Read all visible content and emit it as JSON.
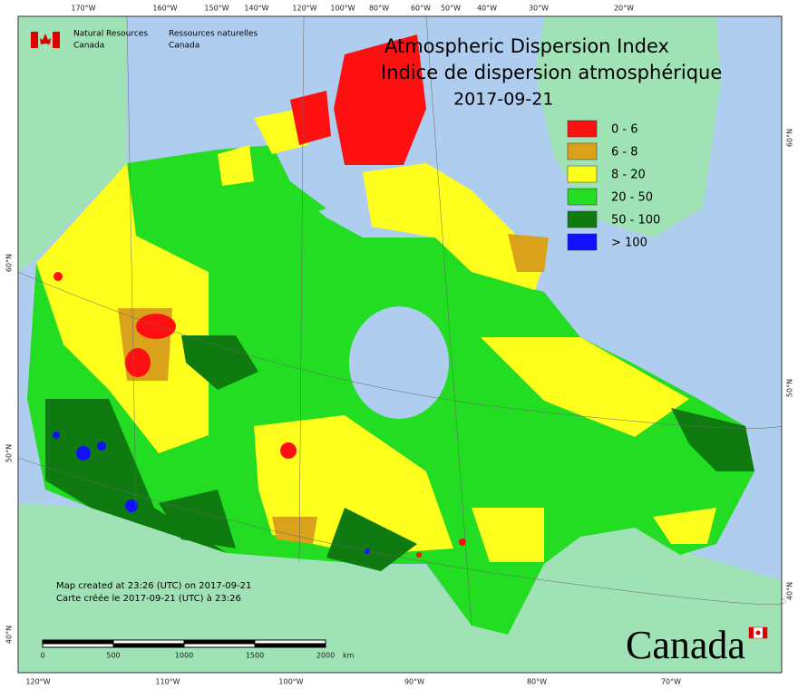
{
  "header": {
    "org_en": [
      "Natural Resources",
      "Canada"
    ],
    "org_fr": [
      "Ressources naturelles",
      "Canada"
    ]
  },
  "title": {
    "line1": "Atmospheric Dispersion Index",
    "line2": "Indice de dispersion atmosphérique",
    "date": "2017-09-21"
  },
  "legend": [
    {
      "label": "0 - 6",
      "color": "#ff1010"
    },
    {
      "label": "6 - 8",
      "color": "#d9a21a"
    },
    {
      "label": "8 - 20",
      "color": "#ffff1e"
    },
    {
      "label": "20 - 50",
      "color": "#22dd22"
    },
    {
      "label": "50 - 100",
      "color": "#0e7a10"
    },
    {
      "label": "> 100",
      "color": "#1010ff"
    }
  ],
  "top_longitudes": [
    "170°W",
    "160°W",
    "150°W",
    "140°W",
    "120°W",
    "100°W",
    "80°W",
    "60°W",
    "50°W",
    "40°W",
    "30°W",
    "20°W"
  ],
  "bottom_longitudes": [
    "120°W",
    "110°W",
    "100°W",
    "90°W",
    "80°W",
    "70°W"
  ],
  "left_latitudes": [
    "60°N",
    "50°N",
    "40°N"
  ],
  "right_latitudes": [
    "60°N",
    "50°N",
    "40°N"
  ],
  "scale_bar": {
    "labels": [
      "0",
      "500",
      "1000",
      "1500",
      "2000"
    ],
    "unit": "km"
  },
  "notes": [
    "Map created at 23:26 (UTC) on 2017-09-21",
    "Carte créée le 2017-09-21 (UTC) à 23:26"
  ],
  "wordmark": "Canada"
}
